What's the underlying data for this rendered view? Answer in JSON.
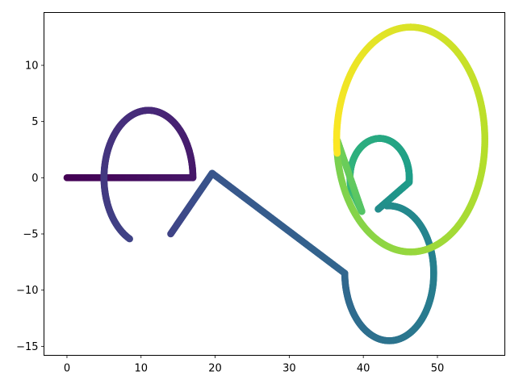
{
  "chart_data": {
    "type": "scatter",
    "title": "",
    "xlabel": "",
    "ylabel": "",
    "xlim": [
      -3.1,
      59.1
    ],
    "ylim": [
      -15.8,
      14.7
    ],
    "xticks": [
      0,
      10,
      20,
      30,
      40,
      50
    ],
    "yticks": [
      -15,
      -10,
      -5,
      0,
      5,
      10
    ],
    "grid": false,
    "colormap": "viridis",
    "color_by": "point order",
    "marker_color_stops": [
      "#440154",
      "#482878",
      "#3e4989",
      "#31688e",
      "#26828e",
      "#1f9e89",
      "#35b779",
      "#6ece58",
      "#b5de2b",
      "#fde725"
    ],
    "segments": [
      {
        "kind": "line",
        "from": [
          0,
          0
        ],
        "to": [
          17,
          0
        ]
      },
      {
        "kind": "ellipse",
        "center": [
          11,
          0
        ],
        "radii": [
          6,
          6
        ],
        "start_deg": 0,
        "end_deg": 245
      },
      {
        "kind": "line",
        "from": [
          14,
          -5
        ],
        "to": [
          19.6,
          0.4
        ]
      },
      {
        "kind": "line",
        "from": [
          19.6,
          0.4
        ],
        "to": [
          37.5,
          -8.5
        ]
      },
      {
        "kind": "ellipse",
        "center": [
          43.5,
          -8.5
        ],
        "radii": [
          6,
          6
        ],
        "start_deg": 180,
        "end_deg": 453
      },
      {
        "kind": "line",
        "from": [
          42,
          -2.8
        ],
        "to": [
          46.2,
          -0.4
        ]
      },
      {
        "kind": "ellipse",
        "center": [
          42.2,
          0
        ],
        "radii": [
          4,
          3.5
        ],
        "start_deg": -6,
        "end_deg": 200
      },
      {
        "kind": "line",
        "from": [
          38.5,
          -1.2
        ],
        "to": [
          39.8,
          -3
        ]
      },
      {
        "kind": "line",
        "from": [
          39.8,
          -3
        ],
        "to": [
          36.5,
          3.3
        ]
      },
      {
        "kind": "ellipse",
        "center": [
          46.4,
          3.4
        ],
        "radii": [
          10,
          10
        ],
        "start_deg": 180,
        "end_deg": 450
      },
      {
        "kind": "ellipse",
        "center": [
          46.4,
          3.4
        ],
        "radii": [
          10,
          10
        ],
        "start_deg": 90,
        "end_deg": 187
      }
    ]
  }
}
